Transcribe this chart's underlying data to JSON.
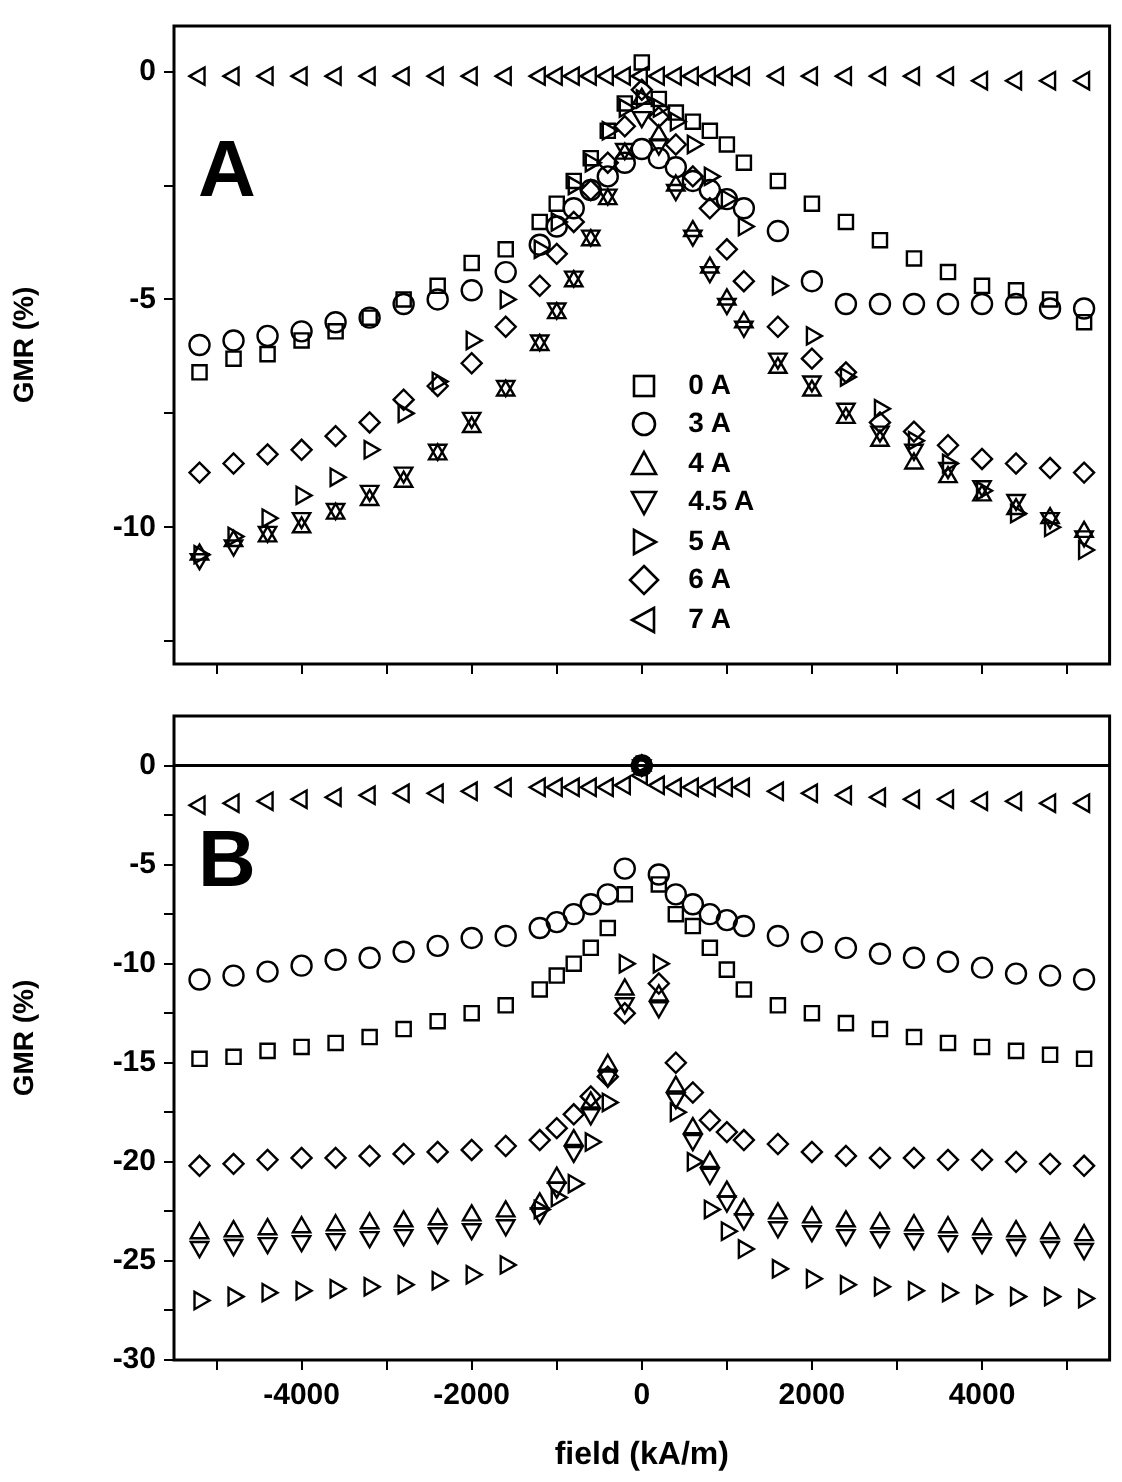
{
  "chart_data": [
    {
      "type": "scatter",
      "ylabel": "GMR (%)",
      "annotations": [
        "A"
      ],
      "legend": "bottom",
      "tick_labels": "y",
      "grid": false,
      "xlim": [
        -5500,
        5500
      ],
      "xticks": [
        {
          "value": -5000,
          "label": null
        },
        -4000,
        {
          "value": -3000,
          "label": null
        },
        -2000,
        {
          "value": -1000,
          "label": null
        },
        0,
        {
          "value": 1000,
          "label": null
        },
        2000,
        {
          "value": 3000,
          "label": null
        },
        4000,
        {
          "value": 5000,
          "label": null
        }
      ],
      "ylim": [
        -13,
        1
      ],
      "yticks": [
        {
          "value": -12.5,
          "label": null
        },
        -10,
        {
          "value": -7.5,
          "label": null
        },
        -5,
        {
          "value": -2.5,
          "label": null
        },
        0
      ],
      "x": [
        -5200,
        -4800,
        -4400,
        -4000,
        -3600,
        -3200,
        -2800,
        -2400,
        -2000,
        -1600,
        -1200,
        -1000,
        -800,
        -600,
        -400,
        -200,
        0,
        200,
        400,
        600,
        800,
        1000,
        1200,
        1600,
        2000,
        2400,
        2800,
        3200,
        3600,
        4000,
        4400,
        4800,
        5200
      ],
      "series": [
        {
          "name": "0 A",
          "color": "#000000",
          "marker": "square",
          "values": [
            -6.6,
            -6.3,
            -6.2,
            -5.9,
            -5.7,
            -5.4,
            -5.0,
            -4.7,
            -4.2,
            -3.9,
            -3.3,
            -2.9,
            -2.4,
            -1.9,
            -1.3,
            -0.7,
            0.2,
            -0.6,
            -0.9,
            -1.1,
            -1.3,
            -1.6,
            -2.0,
            -2.4,
            -2.9,
            -3.3,
            -3.7,
            -4.1,
            -4.4,
            -4.7,
            -4.8,
            -5.0,
            -5.5
          ]
        },
        {
          "name": "3 A",
          "color": "#000000",
          "marker": "circle",
          "values": [
            -6.0,
            -5.9,
            -5.8,
            -5.7,
            -5.5,
            -5.4,
            -5.1,
            -5.0,
            -4.8,
            -4.4,
            -3.8,
            -3.4,
            -3.0,
            -2.6,
            -2.3,
            -2.0,
            -1.7,
            -1.9,
            -2.1,
            -2.4,
            -2.6,
            -2.8,
            -3.0,
            -3.5,
            -4.6,
            -5.1,
            -5.1,
            -5.1,
            -5.1,
            -5.1,
            -5.1,
            -5.2,
            -5.2
          ]
        },
        {
          "name": "4 A",
          "color": "#000000",
          "marker": "triangle",
          "values": [
            -10.6,
            -10.3,
            -10.2,
            -10.0,
            -9.7,
            -9.4,
            -9.0,
            -8.4,
            -7.8,
            -7.0,
            -6.0,
            -5.3,
            -4.6,
            -3.7,
            -2.8,
            -1.8,
            -0.6,
            -1.4,
            -2.5,
            -3.5,
            -4.3,
            -5.0,
            -5.5,
            -6.5,
            -7.0,
            -7.6,
            -8.1,
            -8.6,
            -8.9,
            -9.3,
            -9.6,
            -9.8,
            -10.1
          ]
        },
        {
          "name": "4.5 A",
          "color": "#000000",
          "marker": "triangle-down",
          "values": [
            -10.7,
            -10.4,
            -10.1,
            -9.8,
            -9.6,
            -9.2,
            -8.8,
            -8.3,
            -7.6,
            -6.9,
            -5.9,
            -5.2,
            -4.5,
            -3.6,
            -2.7,
            -1.7,
            -1.0,
            -1.6,
            -2.6,
            -3.6,
            -4.4,
            -5.1,
            -5.6,
            -6.3,
            -6.8,
            -7.4,
            -7.9,
            -8.3,
            -8.7,
            -9.1,
            -9.4,
            -9.8,
            -10.2
          ]
        },
        {
          "name": "5 A",
          "color": "#000000",
          "marker": "triangle-right",
          "values": [
            -10.6,
            -10.2,
            -9.8,
            -9.3,
            -8.9,
            -8.3,
            -7.5,
            -6.8,
            -5.9,
            -5.0,
            -3.9,
            -3.3,
            -2.5,
            -2.0,
            -1.3,
            -0.8,
            -0.6,
            -0.8,
            -1.1,
            -1.6,
            -2.3,
            -2.8,
            -3.4,
            -4.7,
            -5.8,
            -6.7,
            -7.4,
            -8.1,
            -8.6,
            -9.2,
            -9.7,
            -10.0,
            -10.5
          ]
        },
        {
          "name": "6 A",
          "color": "#000000",
          "marker": "diamond",
          "values": [
            -8.8,
            -8.6,
            -8.4,
            -8.3,
            -8.0,
            -7.7,
            -7.2,
            -6.9,
            -6.4,
            -5.6,
            -4.7,
            -4.0,
            -3.3,
            -2.6,
            -2.0,
            -1.2,
            -0.4,
            -1.0,
            -1.6,
            -2.3,
            -3.0,
            -3.9,
            -4.6,
            -5.6,
            -6.3,
            -6.6,
            -7.7,
            -7.9,
            -8.2,
            -8.5,
            -8.6,
            -8.7,
            -8.8
          ]
        },
        {
          "name": "7 A",
          "color": "#000000",
          "marker": "triangle-left",
          "values": [
            -0.1,
            -0.1,
            -0.1,
            -0.1,
            -0.1,
            -0.1,
            -0.1,
            -0.1,
            -0.1,
            -0.1,
            -0.1,
            -0.1,
            -0.1,
            -0.1,
            -0.1,
            -0.1,
            -0.1,
            -0.1,
            -0.1,
            -0.1,
            -0.1,
            -0.1,
            -0.1,
            -0.1,
            -0.1,
            -0.1,
            -0.1,
            -0.1,
            -0.1,
            -0.2,
            -0.2,
            -0.2,
            -0.2
          ]
        }
      ]
    },
    {
      "type": "scatter",
      "xlabel": "field (kA/m)",
      "ylabel": "GMR (%)",
      "annotations": [
        "B"
      ],
      "grid": false,
      "xlim": [
        -5500,
        5500
      ],
      "xticks": [
        {
          "value": -5000,
          "label": null
        },
        -4000,
        {
          "value": -3000,
          "label": null
        },
        -2000,
        {
          "value": -1000,
          "label": null
        },
        0,
        {
          "value": 1000,
          "label": null
        },
        2000,
        {
          "value": 3000,
          "label": null
        },
        4000,
        {
          "value": 5000,
          "label": null
        }
      ],
      "ylim": [
        -30,
        2.5
      ],
      "yticks": [
        -30,
        {
          "value": -27.5,
          "label": null
        },
        -25,
        {
          "value": -22.5,
          "label": null
        },
        -20,
        {
          "value": -17.5,
          "label": null
        },
        -15,
        {
          "value": -12.5,
          "label": null
        },
        -10,
        {
          "value": -7.5,
          "label": null
        },
        -5,
        {
          "value": -2.5,
          "label": null
        },
        0
      ],
      "ref_lines": [
        {
          "axis": "y",
          "value": 0,
          "color": "#000000"
        }
      ],
      "x": [
        -5200,
        -4800,
        -4400,
        -4000,
        -3600,
        -3200,
        -2800,
        -2400,
        -2000,
        -1600,
        -1200,
        -1000,
        -800,
        -600,
        -400,
        -200,
        0,
        200,
        400,
        600,
        800,
        1000,
        1200,
        1600,
        2000,
        2400,
        2800,
        3200,
        3600,
        4000,
        4400,
        4800,
        5200
      ],
      "series": [
        {
          "color": "#000000",
          "marker": "square",
          "values": [
            -14.8,
            -14.7,
            -14.4,
            -14.2,
            -14.0,
            -13.7,
            -13.3,
            -12.9,
            -12.5,
            -12.1,
            -11.3,
            -10.6,
            -10.0,
            -9.2,
            -8.2,
            -6.5,
            0,
            -6.0,
            -7.5,
            -8.1,
            -9.2,
            -10.3,
            -11.3,
            -12.1,
            -12.5,
            -13.0,
            -13.3,
            -13.7,
            -14.0,
            -14.2,
            -14.4,
            -14.6,
            -14.8
          ]
        },
        {
          "color": "#000000",
          "marker": "circle",
          "values": [
            -10.8,
            -10.6,
            -10.4,
            -10.1,
            -9.8,
            -9.7,
            -9.4,
            -9.1,
            -8.7,
            -8.6,
            -8.2,
            -7.9,
            -7.5,
            -7.0,
            -6.5,
            -5.2,
            0,
            -5.5,
            -6.5,
            -7.0,
            -7.5,
            -7.8,
            -8.1,
            -8.6,
            -8.9,
            -9.2,
            -9.5,
            -9.7,
            -9.9,
            -10.2,
            -10.5,
            -10.6,
            -10.8
          ]
        },
        {
          "color": "#000000",
          "marker": "triangle",
          "values": [
            -23.6,
            -23.5,
            -23.4,
            -23.3,
            -23.2,
            -23.1,
            -23.0,
            -22.9,
            -22.7,
            -22.5,
            -22.1,
            -20.8,
            -18.9,
            -17.0,
            -15.1,
            -11.3,
            0,
            -11.6,
            -16.2,
            -18.3,
            -20.0,
            -21.5,
            -22.4,
            -22.6,
            -22.8,
            -23.0,
            -23.1,
            -23.2,
            -23.3,
            -23.4,
            -23.5,
            -23.6,
            -23.7
          ]
        },
        {
          "color": "#000000",
          "marker": "triangle-down",
          "values": [
            -24.3,
            -24.2,
            -24.1,
            -24.0,
            -23.9,
            -23.8,
            -23.7,
            -23.6,
            -23.4,
            -23.2,
            -22.6,
            -21.3,
            -19.5,
            -17.6,
            -15.7,
            -12.0,
            0,
            -12.2,
            -16.8,
            -18.9,
            -20.6,
            -22.0,
            -22.9,
            -23.3,
            -23.5,
            -23.7,
            -23.8,
            -23.9,
            -24.0,
            -24.1,
            -24.2,
            -24.3,
            -24.4
          ]
        },
        {
          "color": "#000000",
          "marker": "triangle-right",
          "values": [
            -27.0,
            -26.8,
            -26.6,
            -26.5,
            -26.4,
            -26.3,
            -26.2,
            -26.0,
            -25.7,
            -25.2,
            -22.4,
            -21.8,
            -21.1,
            -19.0,
            -17.0,
            -10.0,
            0,
            -10.0,
            -17.5,
            -20.0,
            -22.4,
            -23.5,
            -24.4,
            -25.4,
            -25.9,
            -26.2,
            -26.3,
            -26.5,
            -26.6,
            -26.7,
            -26.8,
            -26.8,
            -26.9
          ]
        },
        {
          "color": "#000000",
          "marker": "diamond",
          "values": [
            -20.2,
            -20.1,
            -19.9,
            -19.8,
            -19.8,
            -19.7,
            -19.6,
            -19.5,
            -19.4,
            -19.2,
            -18.9,
            -18.3,
            -17.6,
            -16.7,
            -15.7,
            -12.5,
            0,
            -11.0,
            -15.0,
            -16.5,
            -17.9,
            -18.5,
            -18.9,
            -19.1,
            -19.5,
            -19.7,
            -19.8,
            -19.8,
            -19.9,
            -19.9,
            -20.0,
            -20.1,
            -20.2
          ]
        },
        {
          "color": "#000000",
          "marker": "triangle-left",
          "values": [
            -2.0,
            -1.9,
            -1.8,
            -1.7,
            -1.6,
            -1.5,
            -1.4,
            -1.4,
            -1.3,
            -1.1,
            -1.1,
            -1.1,
            -1.1,
            -1.1,
            -1.1,
            -1.0,
            -0.5,
            -1.0,
            -1.1,
            -1.1,
            -1.1,
            -1.1,
            -1.1,
            -1.3,
            -1.4,
            -1.5,
            -1.6,
            -1.7,
            -1.7,
            -1.8,
            -1.8,
            -1.9,
            -1.9
          ]
        }
      ]
    }
  ]
}
